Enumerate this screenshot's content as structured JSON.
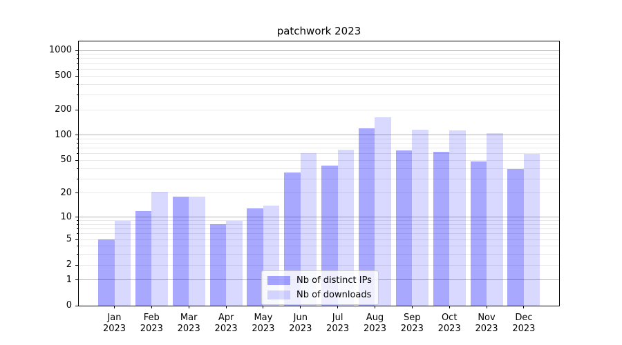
{
  "chart_data": {
    "type": "bar",
    "title": "patchwork 2023",
    "xlabel": "",
    "ylabel": "",
    "categories": [
      "Jan",
      "Feb",
      "Mar",
      "Apr",
      "May",
      "Jun",
      "Jul",
      "Aug",
      "Sep",
      "Oct",
      "Nov",
      "Dec"
    ],
    "x_tick_year": "2023",
    "series": [
      {
        "name": "Nb of distinct IPs",
        "color": "rgba(0,0,255,0.34)",
        "values": [
          5,
          12,
          18,
          8,
          13,
          36,
          43,
          120,
          66,
          63,
          49,
          39
        ]
      },
      {
        "name": "Nb of downloads",
        "color": "rgba(0,0,255,0.15)",
        "values": [
          9,
          21,
          18,
          9,
          14,
          61,
          67,
          162,
          117,
          114,
          105,
          60
        ]
      }
    ],
    "yscale": "symlog-like: position proportional to log10(1+x)",
    "ylim": [
      0,
      1275
    ],
    "yticks_labeled": [
      0,
      1,
      2,
      5,
      10,
      20,
      50,
      100,
      200,
      500,
      1000
    ],
    "grid": {
      "which": "both",
      "major_color": "#b2b2b2",
      "minor_color": "#e8e8e8"
    },
    "legend": {
      "position": "lower center, inside axes"
    }
  }
}
